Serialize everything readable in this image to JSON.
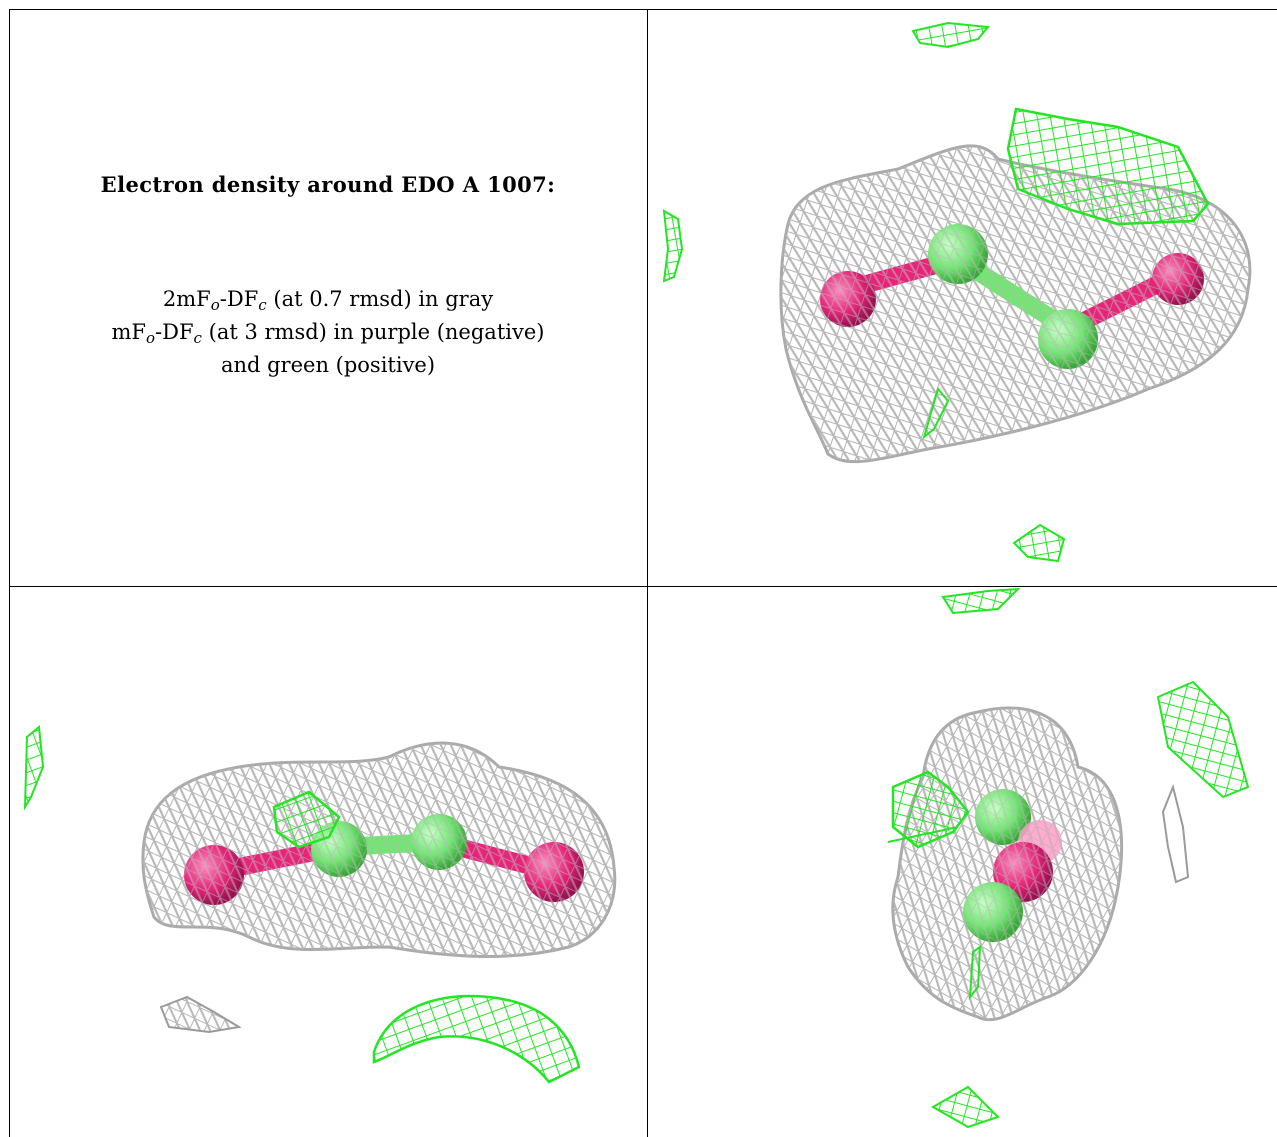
{
  "caption": {
    "title": "Electron density around EDO A 1007:",
    "line1_a": "2mF",
    "line1_sub1": "o",
    "line1_b": "-DF",
    "line1_sub2": "c",
    "line1_c": " (at 0.7 rmsd) in gray",
    "line2_a": "mF",
    "line2_sub1": "o",
    "line2_b": "-DF",
    "line2_sub2": "c",
    "line2_c": " (at 3 rmsd) in purple (negative)",
    "line3": "and green (positive)"
  },
  "colors": {
    "density_2fofc": "#b4b4b4",
    "density_positive": "#22e622",
    "density_negative": "#9b30ff",
    "oxygen_atom": "#e8247a",
    "carbon_atom": "#6ee86e",
    "grid_line": "#000000"
  },
  "views": [
    {
      "id": "view-1",
      "description_name": "edo-density-view-top-right"
    },
    {
      "id": "view-2",
      "description_name": "edo-density-view-bottom-left"
    },
    {
      "id": "view-3",
      "description_name": "edo-density-view-bottom-right"
    }
  ]
}
